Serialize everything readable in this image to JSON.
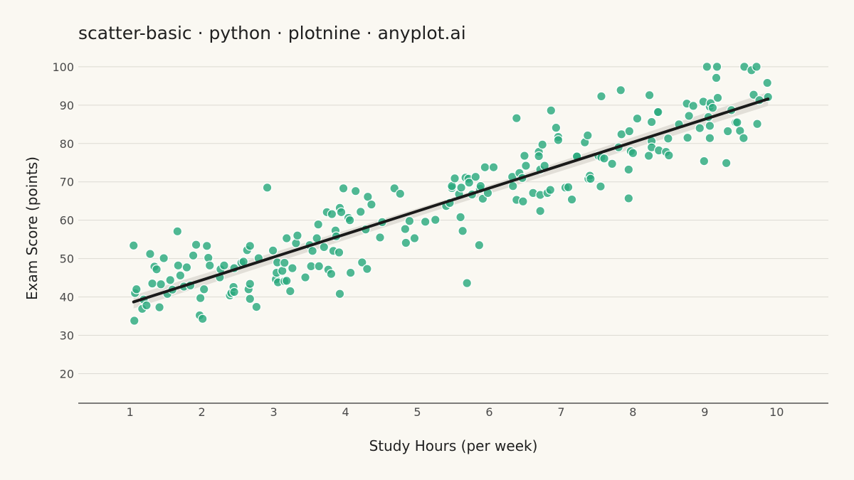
{
  "chart_data": {
    "type": "scatter",
    "title": "scatter-basic · python · plotnine · anyplot.ai",
    "xlabel": "Study Hours (per week)",
    "ylabel": "Exam Score (points)",
    "xlim": [
      0.28,
      10.72
    ],
    "ylim": [
      12.3,
      103.5
    ],
    "x_ticks": [
      1,
      2,
      3,
      4,
      5,
      6,
      7,
      8,
      9,
      10
    ],
    "y_ticks": [
      20,
      30,
      40,
      50,
      60,
      70,
      80,
      90,
      100
    ],
    "x_tick_labels": [
      "1",
      "2",
      "3",
      "4",
      "5",
      "6",
      "7",
      "8",
      "9",
      "10"
    ],
    "y_tick_labels": [
      "20",
      "30",
      "40",
      "50",
      "60",
      "70",
      "80",
      "90",
      "100"
    ],
    "grid": {
      "horizontal": true,
      "vertical": false
    },
    "legend": "none",
    "colors": {
      "background": "#FAF8F2",
      "points": "#2BAA7E",
      "point_edge": "#FFFFFF",
      "trend_line": "#1A1A1A",
      "confidence_band": "#DDDBD3",
      "grid": "#DCDAD3",
      "axis": "#333333"
    },
    "trend_line": {
      "x": [
        1.05,
        9.88
      ],
      "y": [
        38.7,
        91.6
      ]
    },
    "confidence_band": {
      "x": [
        1.05,
        5.47,
        9.88
      ],
      "lower": [
        37.0,
        63.8,
        89.8
      ],
      "upper": [
        40.4,
        65.8,
        93.4
      ]
    },
    "points": [
      [
        1.05,
        53.4
      ],
      [
        1.06,
        33.8
      ],
      [
        1.07,
        41.0
      ],
      [
        1.09,
        42.0
      ],
      [
        1.17,
        36.9
      ],
      [
        1.19,
        39.3
      ],
      [
        1.23,
        37.8
      ],
      [
        1.28,
        51.2
      ],
      [
        1.31,
        43.5
      ],
      [
        1.34,
        47.9
      ],
      [
        1.37,
        47.2
      ],
      [
        1.41,
        37.3
      ],
      [
        1.43,
        43.3
      ],
      [
        1.47,
        50.1
      ],
      [
        1.52,
        40.8
      ],
      [
        1.56,
        44.4
      ],
      [
        1.59,
        41.9
      ],
      [
        1.66,
        57.1
      ],
      [
        1.67,
        48.2
      ],
      [
        1.7,
        45.6
      ],
      [
        1.75,
        42.7
      ],
      [
        1.79,
        47.7
      ],
      [
        1.84,
        43.0
      ],
      [
        1.88,
        50.8
      ],
      [
        1.92,
        53.6
      ],
      [
        1.97,
        35.2
      ],
      [
        1.98,
        39.7
      ],
      [
        2.01,
        34.3
      ],
      [
        2.03,
        42.0
      ],
      [
        2.07,
        53.3
      ],
      [
        2.09,
        50.2
      ],
      [
        2.11,
        48.2
      ],
      [
        2.25,
        45.1
      ],
      [
        2.26,
        47.2
      ],
      [
        2.31,
        48.2
      ],
      [
        2.39,
        40.4
      ],
      [
        2.41,
        41.0
      ],
      [
        2.44,
        42.6
      ],
      [
        2.45,
        47.5
      ],
      [
        2.45,
        41.3
      ],
      [
        2.55,
        48.9
      ],
      [
        2.58,
        49.2
      ],
      [
        2.63,
        52.2
      ],
      [
        2.65,
        42.0
      ],
      [
        2.67,
        53.3
      ],
      [
        2.67,
        43.4
      ],
      [
        2.67,
        39.5
      ],
      [
        2.76,
        37.4
      ],
      [
        2.79,
        50.1
      ],
      [
        2.91,
        68.5
      ],
      [
        2.99,
        52.1
      ],
      [
        3.03,
        44.6
      ],
      [
        3.04,
        46.3
      ],
      [
        3.05,
        49.0
      ],
      [
        3.06,
        43.8
      ],
      [
        3.12,
        46.8
      ],
      [
        3.15,
        44.1
      ],
      [
        3.15,
        48.9
      ],
      [
        3.18,
        44.2
      ],
      [
        3.18,
        55.3
      ],
      [
        3.23,
        41.5
      ],
      [
        3.26,
        47.5
      ],
      [
        3.31,
        54.0
      ],
      [
        3.33,
        56.0
      ],
      [
        3.44,
        45.1
      ],
      [
        3.5,
        53.5
      ],
      [
        3.52,
        48.0
      ],
      [
        3.54,
        52.0
      ],
      [
        3.6,
        55.3
      ],
      [
        3.62,
        58.9
      ],
      [
        3.63,
        48.0
      ],
      [
        3.7,
        53.0
      ],
      [
        3.74,
        62.1
      ],
      [
        3.76,
        47.1
      ],
      [
        3.8,
        46.0
      ],
      [
        3.81,
        61.6
      ],
      [
        3.83,
        52.0
      ],
      [
        3.86,
        57.3
      ],
      [
        3.87,
        55.8
      ],
      [
        3.91,
        51.6
      ],
      [
        3.92,
        40.8
      ],
      [
        3.92,
        63.2
      ],
      [
        3.94,
        62.1
      ],
      [
        3.97,
        68.3
      ],
      [
        4.04,
        60.6
      ],
      [
        4.06,
        60.0
      ],
      [
        4.07,
        46.3
      ],
      [
        4.14,
        67.6
      ],
      [
        4.21,
        62.2
      ],
      [
        4.23,
        49.0
      ],
      [
        4.28,
        57.6
      ],
      [
        4.3,
        47.3
      ],
      [
        4.31,
        66.1
      ],
      [
        4.36,
        64.1
      ],
      [
        4.48,
        55.5
      ],
      [
        4.51,
        59.5
      ],
      [
        4.68,
        68.3
      ],
      [
        4.76,
        66.9
      ],
      [
        4.83,
        57.7
      ],
      [
        4.84,
        54.1
      ],
      [
        4.89,
        59.8
      ],
      [
        4.96,
        55.3
      ],
      [
        5.11,
        59.6
      ],
      [
        5.25,
        60.1
      ],
      [
        5.4,
        63.7
      ],
      [
        5.45,
        64.5
      ],
      [
        5.48,
        68.4
      ],
      [
        5.48,
        68.9
      ],
      [
        5.52,
        70.9
      ],
      [
        5.58,
        66.8
      ],
      [
        5.6,
        60.8
      ],
      [
        5.61,
        68.5
      ],
      [
        5.63,
        57.2
      ],
      [
        5.67,
        71.1
      ],
      [
        5.69,
        43.6
      ],
      [
        5.71,
        70.8
      ],
      [
        5.72,
        69.8
      ],
      [
        5.76,
        66.7
      ],
      [
        5.81,
        71.3
      ],
      [
        5.86,
        53.5
      ],
      [
        5.87,
        68.2
      ],
      [
        5.88,
        68.9
      ],
      [
        5.91,
        65.6
      ],
      [
        5.94,
        73.8
      ],
      [
        5.98,
        67.1
      ],
      [
        6.06,
        73.8
      ],
      [
        6.32,
        71.3
      ],
      [
        6.33,
        68.9
      ],
      [
        6.38,
        86.6
      ],
      [
        6.38,
        65.3
      ],
      [
        6.42,
        72.3
      ],
      [
        6.46,
        71.0
      ],
      [
        6.47,
        64.9
      ],
      [
        6.49,
        76.8
      ],
      [
        6.51,
        74.2
      ],
      [
        6.61,
        67.1
      ],
      [
        6.69,
        77.8
      ],
      [
        6.69,
        76.7
      ],
      [
        6.71,
        73.2
      ],
      [
        6.71,
        66.6
      ],
      [
        6.71,
        62.4
      ],
      [
        6.74,
        79.7
      ],
      [
        6.77,
        74.2
      ],
      [
        6.81,
        67.1
      ],
      [
        6.85,
        67.9
      ],
      [
        6.86,
        88.6
      ],
      [
        6.93,
        84.1
      ],
      [
        6.96,
        81.7
      ],
      [
        6.96,
        80.9
      ],
      [
        7.06,
        68.5
      ],
      [
        7.1,
        68.6
      ],
      [
        7.15,
        65.4
      ],
      [
        7.22,
        76.8
      ],
      [
        7.22,
        76.6
      ],
      [
        7.33,
        80.3
      ],
      [
        7.37,
        82.1
      ],
      [
        7.38,
        70.8
      ],
      [
        7.4,
        71.6
      ],
      [
        7.41,
        70.8
      ],
      [
        7.52,
        76.8
      ],
      [
        7.55,
        68.8
      ],
      [
        7.56,
        76.4
      ],
      [
        7.56,
        92.3
      ],
      [
        7.6,
        76.1
      ],
      [
        7.71,
        74.7
      ],
      [
        7.8,
        79.0
      ],
      [
        7.83,
        93.9
      ],
      [
        7.84,
        82.4
      ],
      [
        7.94,
        73.2
      ],
      [
        7.94,
        65.7
      ],
      [
        7.95,
        83.2
      ],
      [
        7.97,
        78.0
      ],
      [
        8.0,
        77.5
      ],
      [
        8.06,
        86.5
      ],
      [
        8.22,
        76.8
      ],
      [
        8.23,
        92.6
      ],
      [
        8.26,
        80.6
      ],
      [
        8.26,
        79.0
      ],
      [
        8.26,
        85.6
      ],
      [
        8.34,
        88.2
      ],
      [
        8.35,
        88.2
      ],
      [
        8.36,
        78.2
      ],
      [
        8.46,
        77.8
      ],
      [
        8.49,
        81.3
      ],
      [
        8.5,
        76.9
      ],
      [
        8.64,
        85.0
      ],
      [
        8.75,
        90.4
      ],
      [
        8.76,
        81.5
      ],
      [
        8.78,
        87.2
      ],
      [
        8.84,
        89.8
      ],
      [
        8.93,
        84.0
      ],
      [
        8.98,
        90.9
      ],
      [
        8.99,
        75.4
      ],
      [
        9.03,
        100.0
      ],
      [
        9.05,
        86.9
      ],
      [
        9.07,
        89.6
      ],
      [
        9.07,
        84.6
      ],
      [
        9.07,
        81.4
      ],
      [
        9.08,
        90.5
      ],
      [
        9.11,
        89.3
      ],
      [
        9.16,
        97.1
      ],
      [
        9.17,
        100.0
      ],
      [
        9.18,
        91.9
      ],
      [
        9.3,
        74.9
      ],
      [
        9.32,
        83.2
      ],
      [
        9.37,
        88.7
      ],
      [
        9.43,
        85.5
      ],
      [
        9.45,
        85.5
      ],
      [
        9.49,
        83.3
      ],
      [
        9.54,
        81.4
      ],
      [
        9.55,
        100.0
      ],
      [
        9.65,
        99.1
      ],
      [
        9.68,
        92.7
      ],
      [
        9.72,
        100.0
      ],
      [
        9.73,
        85.1
      ],
      [
        9.76,
        91.3
      ],
      [
        9.87,
        95.8
      ],
      [
        9.88,
        92.1
      ]
    ]
  }
}
